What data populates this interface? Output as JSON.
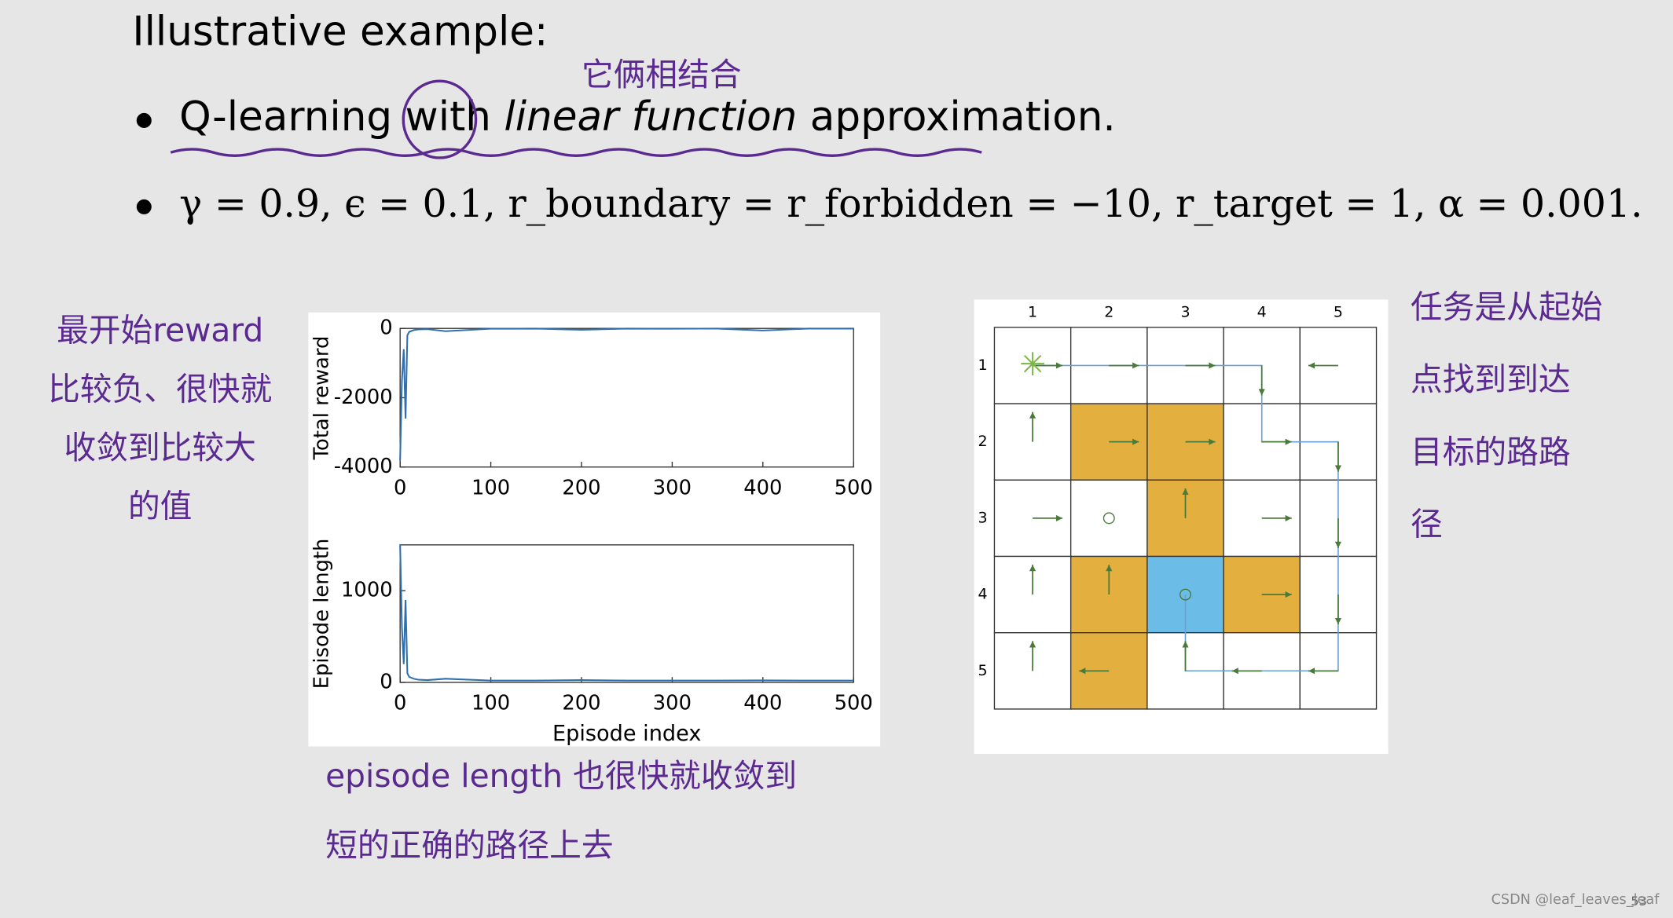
{
  "slide": {
    "heading": "Illustrative example:",
    "bullet1": {
      "pre": "Q-learning with ",
      "italic": "linear function",
      "post": " approximation."
    },
    "bullet2": "γ = 0.9, ϵ = 0.1, r_boundary = r_forbidden = −10, r_target = 1, α = 0.001.",
    "page_number": "53",
    "watermark": "CSDN @leaf_leaves_leaf"
  },
  "notes": {
    "top": "它俩相结合",
    "left": [
      "最开始reward",
      "比较负、很快就",
      "收敛到比较大",
      "的值"
    ],
    "bottom": [
      "episode length 也很快就收敛到",
      "短的正确的路径上去"
    ],
    "right": [
      "任务是从起始",
      "点找到到达",
      "目标的路路",
      "径"
    ]
  },
  "chart_data": [
    {
      "type": "line",
      "ylabel": "Total reward",
      "x": [
        0,
        2,
        4,
        6,
        8,
        10,
        15,
        20,
        30,
        50,
        100,
        150,
        200,
        250,
        300,
        350,
        400,
        450,
        500
      ],
      "series": [
        {
          "color": "#2f6fad",
          "values": [
            -3800,
            -1500,
            -600,
            -2600,
            -200,
            -100,
            -50,
            -30,
            -20,
            -80,
            -10,
            -5,
            -40,
            -5,
            -10,
            -5,
            -60,
            -5,
            -5
          ]
        }
      ],
      "xlim": [
        0,
        500
      ],
      "xticks": [
        0,
        100,
        200,
        300,
        400,
        500
      ],
      "ylim": [
        -4000,
        0
      ],
      "yticks": [
        0,
        -2000,
        -4000
      ]
    },
    {
      "type": "line",
      "ylabel": "Episode length",
      "xlabel": "Episode index",
      "x": [
        0,
        2,
        4,
        6,
        8,
        10,
        15,
        20,
        30,
        50,
        100,
        150,
        200,
        250,
        300,
        350,
        400,
        450,
        500
      ],
      "series": [
        {
          "color": "#2f6fad",
          "values": [
            1500,
            600,
            200,
            900,
            100,
            60,
            40,
            30,
            25,
            40,
            20,
            20,
            25,
            20,
            20,
            20,
            22,
            20,
            20
          ]
        }
      ],
      "xlim": [
        0,
        500
      ],
      "xticks": [
        0,
        100,
        200,
        300,
        400,
        500
      ],
      "ylim": [
        0,
        1500
      ],
      "yticks": [
        0,
        1000
      ]
    }
  ],
  "grid": {
    "col_labels": [
      "1",
      "2",
      "3",
      "4",
      "5"
    ],
    "row_labels": [
      "1",
      "2",
      "3",
      "4",
      "5"
    ]
  }
}
